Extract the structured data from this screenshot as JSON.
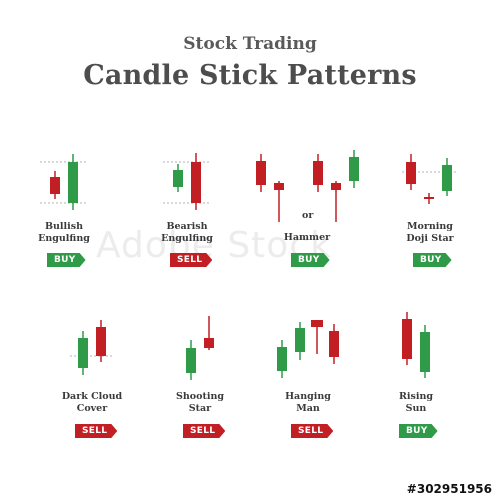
{
  "header": {
    "subtitle": "Stock Trading",
    "title": "Candle Stick Patterns"
  },
  "colors": {
    "bull": "#2f9a47",
    "bear": "#c21f25",
    "text": "#3a3a3a"
  },
  "patterns": [
    {
      "line1": "Bullish",
      "line2": "Engulfing",
      "signal": "BUY"
    },
    {
      "line1": "Bearish",
      "line2": "Engulfing",
      "signal": "SELL"
    },
    {
      "line1": "Hammer",
      "line2": "",
      "signal": "BUY",
      "separator": "or"
    },
    {
      "line1": "Morning",
      "line2": "Doji Star",
      "signal": "BUY"
    },
    {
      "line1": "Dark Cloud",
      "line2": "Cover",
      "signal": "SELL"
    },
    {
      "line1": "Shooting",
      "line2": "Star",
      "signal": "SELL"
    },
    {
      "line1": "Hanging",
      "line2": "Man",
      "signal": "SELL"
    },
    {
      "line1": "Rising",
      "line2": "Sun",
      "signal": "BUY"
    }
  ],
  "watermark": "Adobe Stock",
  "stock_id": "#302951956"
}
